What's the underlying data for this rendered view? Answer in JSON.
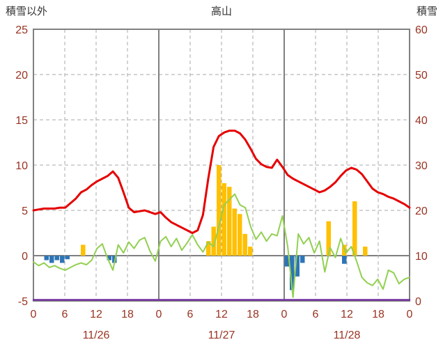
{
  "colors": {
    "header": "#333333",
    "axis_label": "#993322",
    "grid": "#aaaaaa",
    "grid_solid": "#808080",
    "border": "#808080",
    "red_line": "#e60000",
    "green_line": "#92d050",
    "yellow_bar": "#ffc000",
    "blue_bar": "#2e75b6",
    "purple_line": "#7030a0"
  },
  "chart_data": {
    "type": "line+bar combo (hourly weather observations)",
    "title": "高山",
    "x_hours_total": 72,
    "x_tick_interval": 6,
    "x_tick_labels": [
      "0",
      "6",
      "12",
      "18",
      "0",
      "6",
      "12",
      "18",
      "0",
      "6",
      "12",
      "18",
      "0"
    ],
    "date_labels": [
      "11/26",
      "11/27",
      "11/28"
    ],
    "grid": true,
    "left_axis": {
      "title": "積雪以外",
      "min": -5,
      "max": 25,
      "ticks": [
        -5,
        0,
        5,
        10,
        15,
        20,
        25
      ]
    },
    "right_axis": {
      "title": "積雪",
      "min": 0,
      "max": 60,
      "ticks": [
        0,
        10,
        20,
        30,
        40,
        50,
        60
      ]
    },
    "series": [
      {
        "name": "yellow-bars",
        "type": "bar",
        "axis": "left",
        "color": "#ffc000",
        "points": [
          [
            9,
            1.2
          ],
          [
            33,
            1.6
          ],
          [
            34,
            3.2
          ],
          [
            35,
            10.0
          ],
          [
            36,
            8.0
          ],
          [
            37,
            7.6
          ],
          [
            38,
            5.2
          ],
          [
            39,
            4.6
          ],
          [
            40,
            2.4
          ],
          [
            41,
            1.0
          ],
          [
            56,
            3.8
          ],
          [
            59,
            1.2
          ],
          [
            61,
            6.0
          ],
          [
            63,
            1.0
          ]
        ]
      },
      {
        "name": "blue-bars",
        "type": "bar",
        "axis": "left",
        "color": "#2e75b6",
        "points": [
          [
            2,
            -0.5
          ],
          [
            3,
            -0.8
          ],
          [
            4,
            -0.5
          ],
          [
            5,
            -0.8
          ],
          [
            6,
            -0.4
          ],
          [
            14,
            -0.5
          ],
          [
            15,
            -0.8
          ],
          [
            48,
            -1.2
          ],
          [
            49,
            -3.8
          ],
          [
            50,
            -2.3
          ],
          [
            51,
            -0.8
          ],
          [
            59,
            -0.9
          ]
        ]
      },
      {
        "name": "purple-line",
        "type": "line",
        "axis": "right",
        "color": "#7030a0",
        "width": 2.5,
        "values": [
          0,
          0
        ]
      },
      {
        "name": "green-line",
        "type": "line",
        "axis": "left",
        "color": "#92d050",
        "width": 2,
        "values": [
          -0.7,
          -1.1,
          -0.8,
          -1.3,
          -1.1,
          -1.4,
          -1.6,
          -1.3,
          -1.0,
          -0.8,
          -1.0,
          -0.5,
          0.8,
          1.3,
          -0.3,
          -1.6,
          1.2,
          0.3,
          1.5,
          0.8,
          1.7,
          2.0,
          0.5,
          -0.6,
          1.6,
          2.1,
          1.0,
          1.9,
          0.6,
          1.4,
          2.3,
          1.2,
          0.4,
          1.5,
          1.0,
          3.2,
          5.6,
          6.2,
          6.8,
          5.6,
          5.3,
          3.2,
          1.8,
          2.6,
          1.6,
          2.4,
          2.2,
          4.4,
          1.0,
          -4.6,
          2.4,
          1.3,
          2.0,
          0.3,
          1.6,
          -1.8,
          0.9,
          -0.2,
          1.9,
          0.3,
          1.0,
          -0.6,
          -2.4,
          -3.0,
          -3.3,
          -2.6,
          -3.7,
          -1.6,
          -1.9,
          -3.1,
          -2.6,
          -2.4
        ]
      },
      {
        "name": "red-line",
        "type": "line",
        "axis": "left",
        "color": "#e60000",
        "width": 3,
        "values": [
          5.0,
          5.1,
          5.2,
          5.2,
          5.2,
          5.3,
          5.3,
          5.8,
          6.3,
          7.0,
          7.3,
          7.8,
          8.2,
          8.5,
          8.8,
          9.3,
          8.6,
          7.0,
          5.3,
          4.8,
          4.9,
          5.0,
          4.8,
          4.6,
          4.8,
          4.2,
          3.7,
          3.4,
          3.1,
          2.8,
          2.5,
          2.8,
          4.5,
          8.5,
          12.0,
          13.2,
          13.6,
          13.8,
          13.8,
          13.5,
          12.8,
          11.8,
          10.7,
          10.1,
          9.8,
          9.7,
          10.6,
          9.8,
          8.9,
          8.5,
          8.2,
          7.9,
          7.6,
          7.3,
          7.0,
          7.2,
          7.6,
          8.1,
          8.8,
          9.4,
          9.7,
          9.5,
          9.0,
          8.2,
          7.4,
          7.0,
          6.8,
          6.5,
          6.3,
          6.0,
          5.7,
          5.3
        ]
      }
    ]
  }
}
